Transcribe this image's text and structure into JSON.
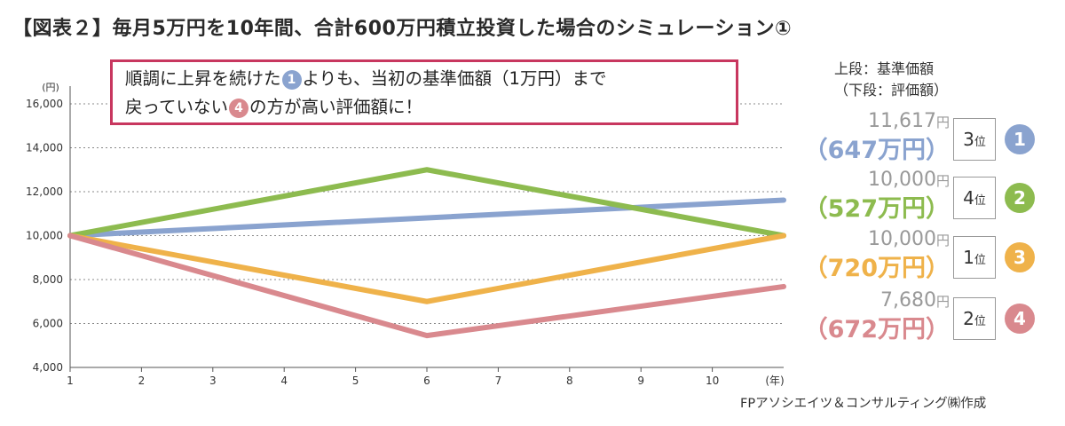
{
  "title": "【図表２】毎月5万円を10年間、合計600万円積立投資した場合のシミュレーション①",
  "note": {
    "line1_a": "順調に上昇を続けた",
    "line1_badge": "1",
    "line1_b": "よりも、当初の基準価額（1万円）まで",
    "line2_a": "戻っていない",
    "line2_badge": "4",
    "line2_b": "の方が高い評価額に！"
  },
  "legend_header": {
    "line1": "上段：基準価額",
    "line2": "（下段：評価額）"
  },
  "results": [
    {
      "id": "1",
      "price": "11,617",
      "price_unit": "円",
      "value": "（647万円）",
      "rank_num": "3",
      "rank_unit": "位",
      "color": "#8aa3cf"
    },
    {
      "id": "2",
      "price": "10,000",
      "price_unit": "円",
      "value": "（527万円）",
      "rank_num": "4",
      "rank_unit": "位",
      "color": "#8dbb4f"
    },
    {
      "id": "3",
      "price": "10,000",
      "price_unit": "円",
      "value": "（720万円）",
      "rank_num": "1",
      "rank_unit": "位",
      "color": "#efb24a"
    },
    {
      "id": "4",
      "price": "7,680",
      "price_unit": "円",
      "value": "（672万円）",
      "rank_num": "2",
      "rank_unit": "位",
      "color": "#d9898e"
    }
  ],
  "source": "FPアソシエイツ＆コンサルティング㈱作成",
  "chart_data": {
    "type": "line",
    "yunit": "(円)",
    "xunit": "(年)",
    "ylim": [
      4000,
      16000
    ],
    "xlim": [
      1,
      11
    ],
    "yticks": [
      4000,
      6000,
      8000,
      10000,
      12000,
      14000,
      16000
    ],
    "ytick_labels": [
      "4,000",
      "6,000",
      "8,000",
      "10,000",
      "12,000",
      "14,000",
      "16,000"
    ],
    "xticks": [
      1,
      2,
      3,
      4,
      5,
      6,
      7,
      8,
      9,
      10
    ],
    "xtick_labels": [
      "1",
      "2",
      "3",
      "4",
      "5",
      "6",
      "7",
      "8",
      "9",
      "10"
    ],
    "grid": "horizontal dotted",
    "series": [
      {
        "name": "1",
        "color": "#8aa3cf",
        "x": [
          1,
          11
        ],
        "y": [
          10000,
          11617
        ]
      },
      {
        "name": "2",
        "color": "#8dbb4f",
        "x": [
          1,
          6,
          11
        ],
        "y": [
          10000,
          13000,
          10000
        ]
      },
      {
        "name": "3",
        "color": "#efb24a",
        "x": [
          1,
          6,
          11
        ],
        "y": [
          10000,
          7000,
          10000
        ]
      },
      {
        "name": "4",
        "color": "#d9898e",
        "x": [
          1,
          6,
          11
        ],
        "y": [
          10000,
          5450,
          7680
        ]
      }
    ]
  }
}
